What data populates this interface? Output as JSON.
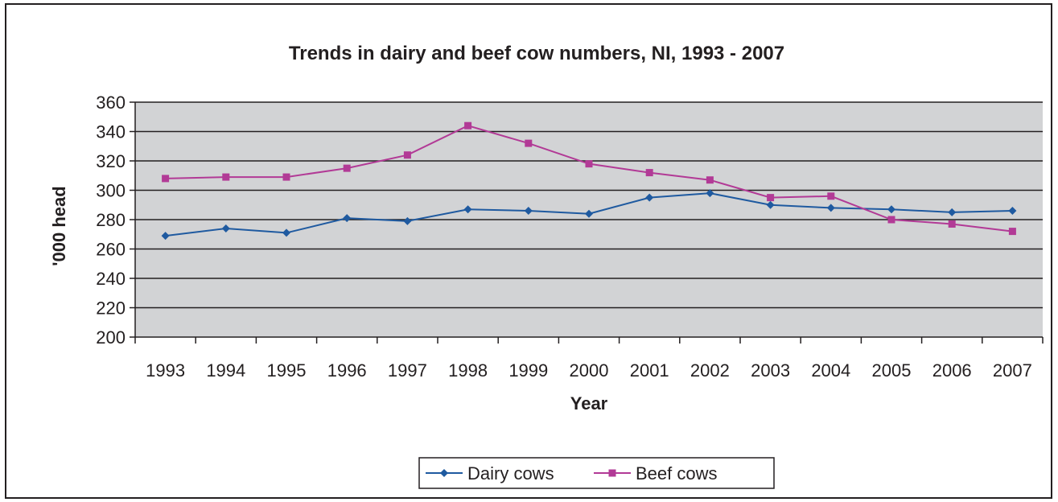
{
  "chart_data": {
    "type": "line",
    "title": "Trends in dairy and beef cow  numbers, NI, 1993 - 2007",
    "xlabel": "Year",
    "ylabel": "'000 head",
    "categories": [
      "1993",
      "1994",
      "1995",
      "1996",
      "1997",
      "1998",
      "1999",
      "2000",
      "2001",
      "2002",
      "2003",
      "2004",
      "2005",
      "2006",
      "2007"
    ],
    "ylim": [
      200,
      360
    ],
    "yticks": [
      200,
      220,
      240,
      260,
      280,
      300,
      320,
      340,
      360
    ],
    "grid": true,
    "legend_position": "bottom",
    "plot_background": "#d2d3d5",
    "series": [
      {
        "name": "Dairy cows",
        "color": "#1f5aa0",
        "marker": "diamond",
        "values": [
          269,
          274,
          271,
          281,
          279,
          287,
          286,
          284,
          295,
          298,
          290,
          288,
          287,
          285,
          286
        ]
      },
      {
        "name": "Beef cows",
        "color": "#b23a96",
        "marker": "square",
        "values": [
          308,
          309,
          309,
          315,
          324,
          344,
          332,
          318,
          312,
          307,
          295,
          296,
          280,
          277,
          272
        ]
      }
    ]
  }
}
